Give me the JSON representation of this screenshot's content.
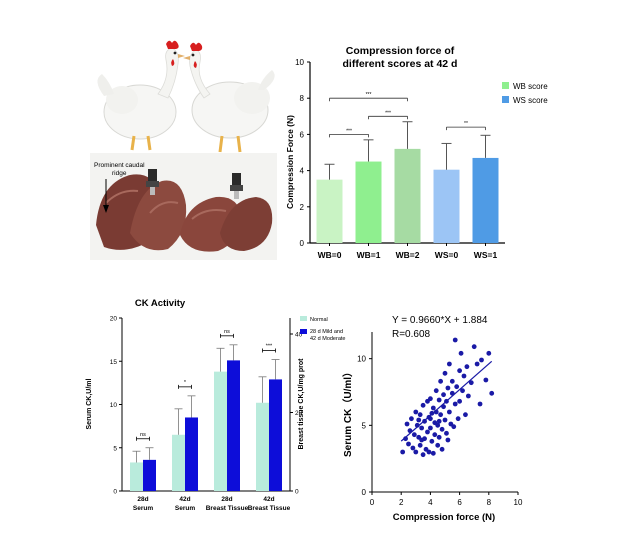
{
  "photos": {
    "caudal_ridge_label_line1": "Prominent caudal",
    "caudal_ridge_label_line2": "ridge"
  },
  "chart_data": [
    {
      "id": "compression",
      "type": "bar",
      "title_line1": "Compression force of",
      "title_line2": "different scores at 42 d",
      "xlabel": "",
      "ylabel": "Compression Force (N)",
      "ylim": [
        0,
        10
      ],
      "yticks": [
        0,
        2,
        4,
        6,
        8,
        10
      ],
      "categories": [
        "WB=0",
        "WB=1",
        "WB=2",
        "WS=0",
        "WS=1"
      ],
      "values": [
        3.5,
        4.5,
        5.2,
        4.05,
        4.7
      ],
      "errors": [
        0.85,
        1.2,
        1.5,
        1.45,
        1.25
      ],
      "bar_colors": [
        "#c9f3c4",
        "#8fef8f",
        "#a6dba3",
        "#9cc5f5",
        "#4f9be5"
      ],
      "legend": [
        {
          "label": "WB score",
          "color": "#8fef8f"
        },
        {
          "label": "WS score",
          "color": "#4f9be5"
        }
      ],
      "legend_position": "top-right",
      "significance": [
        {
          "from": 0,
          "to": 2,
          "level": 8.0,
          "label": "***"
        },
        {
          "from": 1,
          "to": 2,
          "level": 7.0,
          "label": "***"
        },
        {
          "from": 0,
          "to": 1,
          "level": 6.0,
          "label": "***"
        },
        {
          "from": 3,
          "to": 4,
          "level": 6.4,
          "label": "**"
        }
      ]
    },
    {
      "id": "ck",
      "type": "bar",
      "title": "CK Activity",
      "ylabel_left": "Serum CK,U/ml",
      "ylabel_right": "Breast tissue CK,U/mg prot",
      "ylim_left": [
        0,
        20
      ],
      "yticks_left": [
        0,
        5,
        10,
        15,
        20
      ],
      "yticks_right_labels": [
        "0",
        "20",
        "40"
      ],
      "categories": [
        {
          "line1": "28d",
          "line2": "Serum"
        },
        {
          "line1": "42d",
          "line2": "Serum"
        },
        {
          "line1": "28d",
          "line2": "Breast Tissue"
        },
        {
          "line1": "42d",
          "line2": "Breast Tissue"
        }
      ],
      "series": [
        {
          "name": "Normal",
          "color": "#b9ebdc",
          "values": [
            3.3,
            6.5,
            13.8,
            10.2
          ],
          "errors": [
            1.3,
            3.0,
            2.7,
            3.0
          ]
        },
        {
          "name_line1": "28 d Mild and",
          "name_line2": "42 d Moderate",
          "color": "#0d0dd9",
          "values": [
            3.6,
            8.5,
            15.1,
            12.9
          ],
          "errors": [
            1.4,
            2.5,
            1.8,
            2.3
          ]
        }
      ],
      "significance": [
        "ns",
        "*",
        "ns",
        "***"
      ],
      "legend_position": "top-right"
    },
    {
      "id": "scatter",
      "type": "scatter",
      "xlabel": "Compression force (N)",
      "ylabel": "Serum  CK（U/ml）",
      "xlim": [
        0,
        10
      ],
      "ylim": [
        0,
        12
      ],
      "xticks": [
        0,
        2,
        4,
        6,
        8,
        10
      ],
      "yticks": [
        0,
        5,
        10
      ],
      "equation": "Y = 0.9660*X + 1.884",
      "r_text": "R=0.608",
      "regression": {
        "slope": 0.966,
        "intercept": 1.884,
        "x_range": [
          2.0,
          8.2
        ]
      },
      "point_color": "#1a1aa6",
      "points": [
        [
          2.1,
          3.0
        ],
        [
          2.3,
          4.0
        ],
        [
          2.4,
          5.1
        ],
        [
          2.5,
          3.6
        ],
        [
          2.6,
          4.6
        ],
        [
          2.7,
          5.5
        ],
        [
          2.8,
          3.3
        ],
        [
          2.9,
          4.3
        ],
        [
          3.0,
          6.0
        ],
        [
          3.0,
          3.0
        ],
        [
          3.1,
          5.0
        ],
        [
          3.2,
          4.1
        ],
        [
          3.3,
          5.8
        ],
        [
          3.3,
          3.5
        ],
        [
          3.4,
          4.8
        ],
        [
          3.5,
          6.5
        ],
        [
          3.5,
          2.8
        ],
        [
          3.6,
          5.3
        ],
        [
          3.6,
          4.0
        ],
        [
          3.7,
          3.2
        ],
        [
          3.8,
          6.8
        ],
        [
          3.8,
          4.5
        ],
        [
          3.9,
          5.6
        ],
        [
          3.9,
          3.0
        ],
        [
          4.0,
          7.0
        ],
        [
          4.0,
          4.8
        ],
        [
          4.1,
          5.9
        ],
        [
          4.1,
          3.8
        ],
        [
          4.2,
          6.3
        ],
        [
          4.2,
          2.9
        ],
        [
          4.3,
          5.2
        ],
        [
          4.3,
          4.3
        ],
        [
          4.4,
          7.6
        ],
        [
          4.4,
          6.0
        ],
        [
          4.5,
          3.5
        ],
        [
          4.5,
          5.0
        ],
        [
          4.6,
          6.9
        ],
        [
          4.6,
          4.1
        ],
        [
          4.7,
          8.3
        ],
        [
          4.7,
          5.8
        ],
        [
          4.8,
          4.7
        ],
        [
          4.8,
          3.2
        ],
        [
          4.9,
          6.4
        ],
        [
          4.9,
          7.3
        ],
        [
          5.0,
          5.4
        ],
        [
          5.0,
          8.9
        ],
        [
          5.1,
          4.4
        ],
        [
          5.1,
          6.8
        ],
        [
          5.2,
          7.8
        ],
        [
          5.2,
          3.9
        ],
        [
          5.3,
          6.0
        ],
        [
          5.3,
          9.6
        ],
        [
          5.4,
          5.1
        ],
        [
          5.5,
          7.4
        ],
        [
          5.5,
          8.3
        ],
        [
          5.6,
          4.9
        ],
        [
          5.7,
          6.6
        ],
        [
          5.7,
          11.4
        ],
        [
          5.8,
          7.9
        ],
        [
          5.9,
          5.5
        ],
        [
          6.0,
          9.1
        ],
        [
          6.0,
          6.8
        ],
        [
          6.1,
          10.4
        ],
        [
          6.2,
          7.6
        ],
        [
          6.3,
          8.7
        ],
        [
          6.4,
          5.8
        ],
        [
          6.5,
          9.4
        ],
        [
          6.6,
          7.2
        ],
        [
          6.8,
          8.2
        ],
        [
          7.0,
          10.9
        ],
        [
          7.2,
          9.6
        ],
        [
          7.4,
          6.6
        ],
        [
          7.5,
          9.9
        ],
        [
          7.8,
          8.4
        ],
        [
          8.0,
          10.4
        ],
        [
          8.2,
          7.4
        ],
        [
          3.4,
          3.9
        ],
        [
          4.0,
          5.5
        ],
        [
          4.6,
          5.3
        ],
        [
          3.2,
          5.4
        ]
      ]
    }
  ]
}
